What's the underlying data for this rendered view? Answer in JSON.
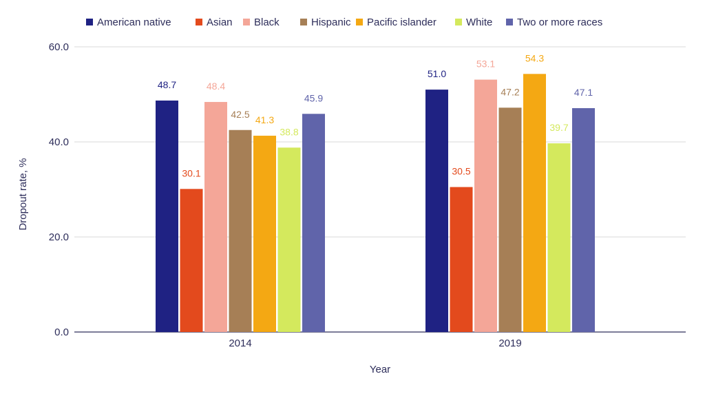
{
  "chart_data": {
    "type": "bar",
    "categories": [
      "2014",
      "2019"
    ],
    "series": [
      {
        "name": "American native",
        "values": [
          48.7,
          51.0
        ],
        "labels": [
          "48.7",
          "51.0"
        ],
        "color": "#1f2283"
      },
      {
        "name": "Asian",
        "values": [
          30.1,
          30.5
        ],
        "labels": [
          "30.1",
          "30.5"
        ],
        "color": "#e34a1d"
      },
      {
        "name": "Black",
        "values": [
          48.4,
          53.1
        ],
        "labels": [
          "48.4",
          "53.1"
        ],
        "color": "#f4a698"
      },
      {
        "name": "Hispanic",
        "values": [
          42.5,
          47.2
        ],
        "labels": [
          "42.5",
          "47.2"
        ],
        "color": "#a67f56"
      },
      {
        "name": "Pacific islander",
        "values": [
          41.3,
          54.3
        ],
        "labels": [
          "41.3",
          "54.3"
        ],
        "color": "#f4a813"
      },
      {
        "name": "White",
        "values": [
          38.8,
          39.7
        ],
        "labels": [
          "38.8",
          "39.7"
        ],
        "color": "#d4e95d"
      },
      {
        "name": "Two or more races",
        "values": [
          45.9,
          47.1
        ],
        "labels": [
          "45.9",
          "47.1"
        ],
        "color": "#6064aa"
      }
    ],
    "label_colors": [
      "#1f2283",
      "#e34a1d",
      "#f4a698",
      "#a67f56",
      "#f4a813",
      "#d4e95d",
      "#6064aa"
    ],
    "xlabel": "Year",
    "ylabel": "Dropout rate, %",
    "ylim": [
      0,
      60
    ],
    "yticks": [
      0,
      20,
      40,
      60
    ],
    "ytick_labels": [
      "0.0",
      "20.0",
      "40.0",
      "60.0"
    ],
    "grid": true,
    "legend_position": "top"
  }
}
